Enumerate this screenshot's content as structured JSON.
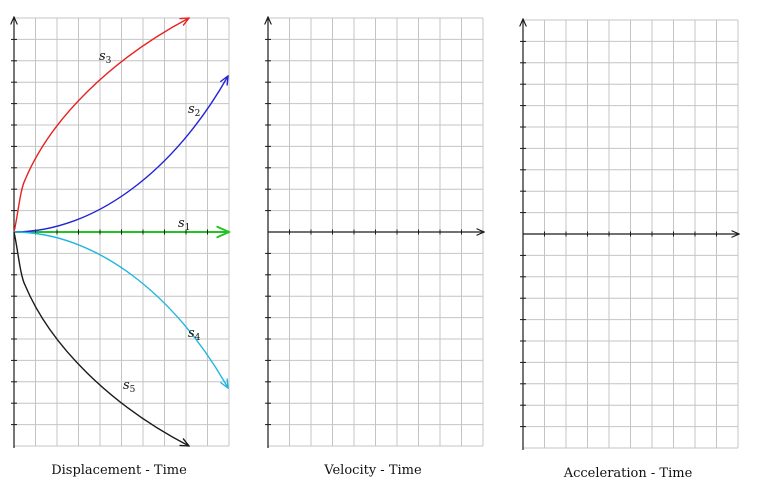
{
  "panels": [
    {
      "id": "displacement",
      "caption": "Displacement - Time",
      "curves": [
        {
          "id": "s1",
          "label": "s",
          "subscript": "1",
          "color": "#22c322"
        },
        {
          "id": "s2",
          "label": "s",
          "subscript": "2",
          "color": "#2323d8"
        },
        {
          "id": "s3",
          "label": "s",
          "subscript": "3",
          "color": "#e82020"
        },
        {
          "id": "s4",
          "label": "s",
          "subscript": "4",
          "color": "#1fb6e0"
        },
        {
          "id": "s5",
          "label": "s",
          "subscript": "5",
          "color": "#1a1a1a"
        }
      ]
    },
    {
      "id": "velocity",
      "caption": "Velocity - Time",
      "curves": []
    },
    {
      "id": "acceleration",
      "caption": "Acceleration - Time",
      "curves": []
    }
  ]
}
